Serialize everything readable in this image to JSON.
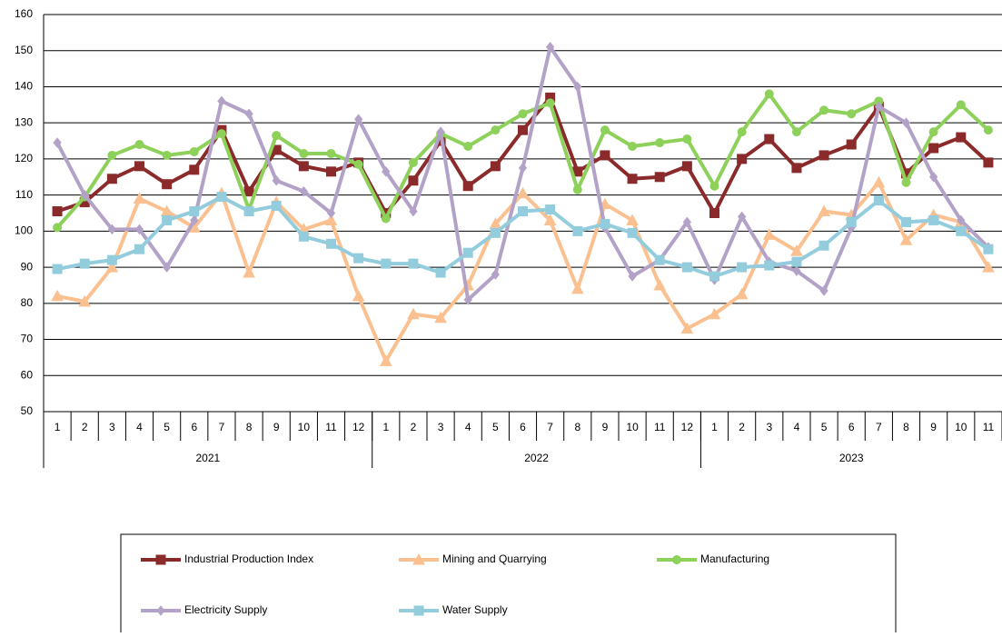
{
  "chart_data": {
    "type": "line",
    "categories": [
      "1",
      "2",
      "3",
      "4",
      "5",
      "6",
      "7",
      "8",
      "9",
      "10",
      "11",
      "12",
      "1",
      "2",
      "3",
      "4",
      "5",
      "6",
      "7",
      "8",
      "9",
      "10",
      "11",
      "12",
      "1",
      "2",
      "3",
      "4",
      "5",
      "6",
      "7",
      "8",
      "9",
      "10",
      "11"
    ],
    "groups": [
      {
        "label": "2021",
        "count": 12
      },
      {
        "label": "2022",
        "count": 12
      },
      {
        "label": "2023",
        "count": 11
      }
    ],
    "ylim": [
      50,
      160
    ],
    "yticks": [
      50,
      60,
      70,
      80,
      90,
      100,
      110,
      120,
      130,
      140,
      150,
      160
    ],
    "grid": true,
    "legend": "bottom",
    "series": [
      {
        "name": "Industrial Production Index",
        "color": "#8b2a2a",
        "marker": "square",
        "values": [
          105.5,
          108,
          114.5,
          118,
          113,
          117,
          128,
          111,
          122.5,
          118,
          116.5,
          119,
          105,
          114,
          125,
          112.5,
          118,
          128,
          137,
          116.5,
          121,
          114.5,
          115,
          118,
          105,
          120,
          125.5,
          117.5,
          121,
          124,
          134.5,
          116,
          123,
          126,
          119
        ]
      },
      {
        "name": "Mining and Quarrying",
        "color": "#fac090",
        "marker": "triangle",
        "values": [
          82,
          80.5,
          90,
          109,
          105.5,
          101,
          110.5,
          88.5,
          108,
          100.5,
          103,
          82,
          64,
          77,
          76,
          85,
          102,
          110.5,
          103,
          84,
          107.5,
          103,
          85,
          73,
          77,
          82.5,
          99,
          94.5,
          105.5,
          104.5,
          113.5,
          97.5,
          104.5,
          102.5,
          90
        ]
      },
      {
        "name": "Manufacturing",
        "color": "#8dd15a",
        "marker": "circle",
        "values": [
          101,
          109.5,
          121,
          124,
          121,
          122,
          127,
          106,
          126.5,
          121.5,
          121.5,
          118.5,
          103.5,
          119,
          127,
          123.5,
          128,
          132.5,
          135.5,
          111.5,
          128,
          123.5,
          124.5,
          125.5,
          112.5,
          127.5,
          138,
          127.5,
          133.5,
          132.5,
          136,
          113.5,
          127.5,
          135,
          128
        ]
      },
      {
        "name": "Electricity Supply",
        "color": "#b3a2c7",
        "marker": "diamond",
        "values": [
          124.5,
          110,
          100.5,
          100.5,
          90,
          103,
          136,
          132.5,
          114,
          111,
          105,
          131,
          116.5,
          105.5,
          127.5,
          81,
          88,
          117.5,
          151,
          140,
          101,
          87.5,
          92,
          102.5,
          86.5,
          104,
          91.5,
          89,
          83.5,
          101,
          134.5,
          130,
          115,
          103,
          95.5
        ]
      },
      {
        "name": "Water Supply",
        "color": "#93cddd",
        "marker": "square",
        "values": [
          89.5,
          91,
          92,
          95,
          103,
          105.5,
          109.5,
          105.5,
          107,
          98.5,
          96.5,
          92.5,
          91,
          91,
          88.5,
          94,
          99.5,
          105.5,
          106,
          100,
          102,
          99.5,
          92,
          90,
          87.5,
          90,
          90.5,
          91.5,
          96,
          102.5,
          108.5,
          102.5,
          103,
          100,
          95
        ]
      }
    ]
  }
}
